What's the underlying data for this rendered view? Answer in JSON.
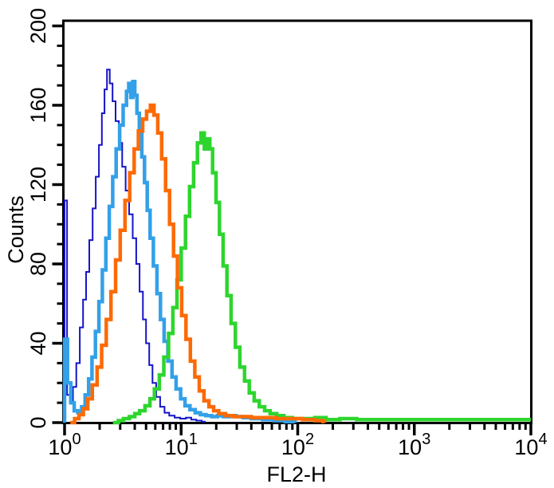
{
  "chart_data": {
    "type": "line",
    "subtype": "flow-cytometry-overlay-histogram",
    "title": "",
    "xlabel": "FL2-H",
    "ylabel": "Counts",
    "x_scale": "log10",
    "xlim": [
      1,
      10000
    ],
    "ylim": [
      0,
      203
    ],
    "grid": false,
    "legend": "none",
    "background": "#ffffff",
    "axis_color": "#000000",
    "x_tick_base": "10",
    "x_major_tick_exponents": [
      0,
      1,
      2,
      3,
      4
    ],
    "x_minor_tick_multiples": [
      2,
      3,
      4,
      5,
      6,
      7,
      8,
      9
    ],
    "y_major_ticks": [
      0,
      40,
      80,
      120,
      160,
      200
    ],
    "y_minor_tick_step": 10,
    "series": [
      {
        "name": "navy-thin-histogram",
        "color": "#1414C8",
        "line_width": 2,
        "points": [
          [
            1.0,
            0
          ],
          [
            1.0,
            112
          ],
          [
            1.05,
            14
          ],
          [
            1.11,
            10
          ],
          [
            1.18,
            18
          ],
          [
            1.26,
            30
          ],
          [
            1.35,
            48
          ],
          [
            1.44,
            62
          ],
          [
            1.53,
            76
          ],
          [
            1.63,
            92
          ],
          [
            1.74,
            108
          ],
          [
            1.85,
            124
          ],
          [
            1.97,
            140
          ],
          [
            2.09,
            156
          ],
          [
            2.2,
            168
          ],
          [
            2.31,
            178
          ],
          [
            2.44,
            171
          ],
          [
            2.58,
            162
          ],
          [
            2.74,
            152
          ],
          [
            2.92,
            141
          ],
          [
            3.12,
            129
          ],
          [
            3.34,
            117
          ],
          [
            3.58,
            105
          ],
          [
            3.84,
            93
          ],
          [
            4.12,
            80
          ],
          [
            4.4,
            66
          ],
          [
            4.7,
            52
          ],
          [
            5.0,
            40
          ],
          [
            5.32,
            29
          ],
          [
            5.68,
            20
          ],
          [
            6.1,
            13
          ],
          [
            6.6,
            8
          ],
          [
            7.2,
            5
          ],
          [
            7.9,
            3.5
          ],
          [
            8.8,
            2.5
          ],
          [
            9.8,
            2
          ],
          [
            11.0,
            2.5
          ],
          [
            12.2,
            1.5
          ],
          [
            13.5,
            1
          ],
          [
            15.0,
            0.5
          ],
          [
            16.0,
            0
          ]
        ]
      },
      {
        "name": "light-blue-histogram",
        "color": "#33A0E8",
        "line_width": 4.5,
        "points": [
          [
            1.0,
            0
          ],
          [
            1.0,
            42
          ],
          [
            1.06,
            20
          ],
          [
            1.13,
            10
          ],
          [
            1.21,
            6
          ],
          [
            1.3,
            5
          ],
          [
            1.4,
            8
          ],
          [
            1.5,
            14
          ],
          [
            1.61,
            22
          ],
          [
            1.72,
            33
          ],
          [
            1.84,
            46
          ],
          [
            1.97,
            61
          ],
          [
            2.11,
            77
          ],
          [
            2.26,
            93
          ],
          [
            2.42,
            109
          ],
          [
            2.59,
            124
          ],
          [
            2.77,
            138
          ],
          [
            2.97,
            150
          ],
          [
            3.18,
            160
          ],
          [
            3.4,
            167
          ],
          [
            3.55,
            171
          ],
          [
            3.7,
            164
          ],
          [
            3.85,
            172
          ],
          [
            4.0,
            165
          ],
          [
            4.18,
            156
          ],
          [
            4.38,
            146
          ],
          [
            4.6,
            134
          ],
          [
            4.85,
            121
          ],
          [
            5.12,
            107
          ],
          [
            5.42,
            93
          ],
          [
            5.78,
            79
          ],
          [
            6.2,
            65
          ],
          [
            6.65,
            52
          ],
          [
            7.15,
            41
          ],
          [
            7.7,
            31
          ],
          [
            8.35,
            23
          ],
          [
            9.05,
            17
          ],
          [
            9.9,
            12
          ],
          [
            10.8,
            8.5
          ],
          [
            11.9,
            6.5
          ],
          [
            13.2,
            5
          ],
          [
            14.6,
            4
          ],
          [
            16.3,
            3.5
          ],
          [
            18.3,
            3
          ],
          [
            20.5,
            3.5
          ],
          [
            23.0,
            3
          ],
          [
            26.0,
            3.5
          ],
          [
            29.5,
            3
          ],
          [
            34.0,
            2.5
          ],
          [
            40.0,
            2
          ],
          [
            50.0,
            1.5
          ],
          [
            63.0,
            1
          ],
          [
            78.0,
            0.5
          ],
          [
            95.0,
            0
          ]
        ]
      },
      {
        "name": "green-histogram",
        "color": "#2ED52E",
        "line_width": 4.5,
        "points": [
          [
            2.6,
            0
          ],
          [
            2.9,
            1
          ],
          [
            3.2,
            2
          ],
          [
            3.6,
            3
          ],
          [
            4.0,
            4.5
          ],
          [
            4.4,
            6
          ],
          [
            4.9,
            8.5
          ],
          [
            5.4,
            12
          ],
          [
            5.9,
            17
          ],
          [
            6.5,
            24
          ],
          [
            7.1,
            33
          ],
          [
            7.8,
            45
          ],
          [
            8.5,
            58
          ],
          [
            9.2,
            72
          ],
          [
            10.0,
            88
          ],
          [
            10.9,
            104
          ],
          [
            11.8,
            119
          ],
          [
            12.8,
            131
          ],
          [
            13.8,
            141
          ],
          [
            14.8,
            146
          ],
          [
            15.8,
            138
          ],
          [
            16.7,
            143
          ],
          [
            17.6,
            138
          ],
          [
            18.6,
            126
          ],
          [
            19.9,
            111
          ],
          [
            21.3,
            95
          ],
          [
            22.9,
            79
          ],
          [
            24.7,
            64
          ],
          [
            26.8,
            50
          ],
          [
            29.2,
            38
          ],
          [
            31.9,
            28
          ],
          [
            35.0,
            21
          ],
          [
            38.4,
            15
          ],
          [
            42.3,
            11
          ],
          [
            46.8,
            8
          ],
          [
            52.0,
            6
          ],
          [
            58.0,
            4.5
          ],
          [
            66.0,
            3.5
          ],
          [
            76.0,
            2.5
          ],
          [
            90.0,
            2
          ],
          [
            110.0,
            2
          ],
          [
            140.0,
            2.5
          ],
          [
            175.0,
            1.5
          ],
          [
            230.0,
            2
          ],
          [
            320.0,
            1.5
          ],
          [
            500.0,
            1.5
          ],
          [
            900.0,
            1.5
          ],
          [
            1800.0,
            1.5
          ],
          [
            3500.0,
            1.5
          ],
          [
            7000.0,
            1.5
          ],
          [
            10000.0,
            1.5
          ]
        ]
      },
      {
        "name": "orange-histogram",
        "color": "#FC6A06",
        "line_width": 4.5,
        "points": [
          [
            1.12,
            0
          ],
          [
            1.22,
            2
          ],
          [
            1.33,
            4
          ],
          [
            1.45,
            7
          ],
          [
            1.58,
            12
          ],
          [
            1.73,
            19
          ],
          [
            1.9,
            28
          ],
          [
            2.08,
            39
          ],
          [
            2.28,
            52
          ],
          [
            2.5,
            66
          ],
          [
            2.74,
            82
          ],
          [
            3.0,
            97
          ],
          [
            3.3,
            112
          ],
          [
            3.62,
            126
          ],
          [
            3.95,
            138
          ],
          [
            4.3,
            147
          ],
          [
            4.68,
            153
          ],
          [
            5.05,
            157
          ],
          [
            5.45,
            160
          ],
          [
            5.85,
            155
          ],
          [
            6.3,
            146
          ],
          [
            6.8,
            133
          ],
          [
            7.35,
            117
          ],
          [
            7.95,
            100
          ],
          [
            8.6,
            84
          ],
          [
            9.3,
            68
          ],
          [
            10.1,
            54
          ],
          [
            11.0,
            42
          ],
          [
            12.0,
            31
          ],
          [
            13.1,
            23
          ],
          [
            14.3,
            16
          ],
          [
            15.7,
            11
          ],
          [
            17.3,
            8
          ],
          [
            19.0,
            6
          ],
          [
            21.0,
            4.5
          ],
          [
            24.0,
            3.5
          ],
          [
            28.0,
            3
          ],
          [
            33.0,
            3
          ],
          [
            40.0,
            2.5
          ],
          [
            50.0,
            2.5
          ],
          [
            65.0,
            2
          ],
          [
            85.0,
            2
          ],
          [
            110.0,
            1.5
          ],
          [
            140.0,
            1
          ],
          [
            165.0,
            0.5
          ],
          [
            170.0,
            0
          ]
        ]
      }
    ]
  }
}
